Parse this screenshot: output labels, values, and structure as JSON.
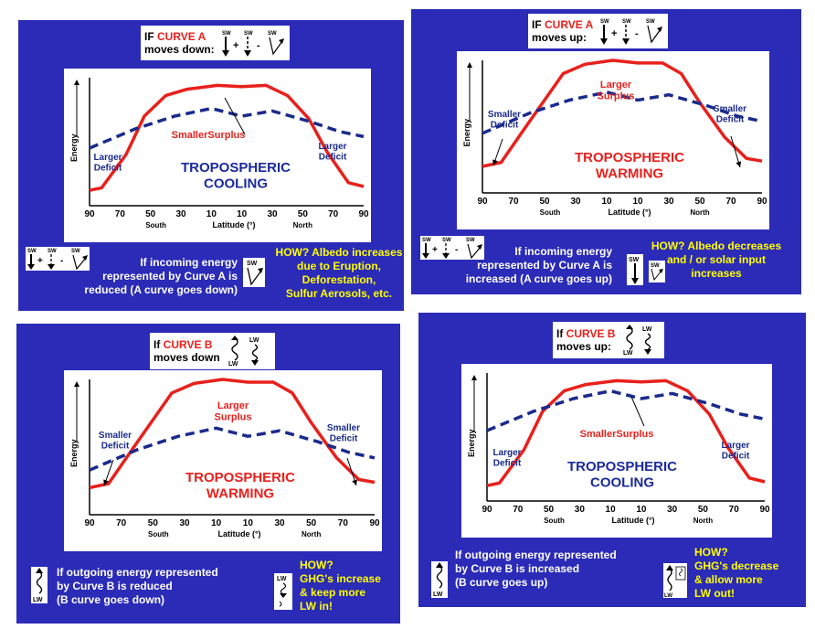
{
  "common": {
    "ylabel": "Energy",
    "xlabel": "Latitude (°)",
    "south": "South",
    "north": "North",
    "ticks": [
      "90",
      "70",
      "50",
      "30",
      "10",
      "10",
      "30",
      "50",
      "70",
      "90"
    ],
    "sw": "SW",
    "lw": "LW",
    "colors": {
      "panel": "#2b2bb8",
      "curveA": "#e8201c",
      "curveB": "#1a2a8c",
      "warm": "#e8201c",
      "cool": "#1a2a9c",
      "note": "#ffff00"
    }
  },
  "panels": [
    {
      "title_if": "IF ",
      "title_curve": "CURVE A",
      "title_rest": "moves down:",
      "op1": "+",
      "op2": "-",
      "surplus": "SmallerSurplus",
      "left_label": "Larger\nDeficit",
      "right_label": "Larger\nDeficit",
      "effect": "TROPOSPHERIC\nCOOLING",
      "desc": "If incoming energy\nrepresented by Curve A  is\nreduced (A curve goes down)",
      "how": "HOW?  Albedo increases\ndue to Eruption,\nDeforestation,\nSulfur Aerosols, etc."
    },
    {
      "title_if": "IF ",
      "title_curve": "CURVE A",
      "title_rest": "moves up:",
      "op1": "+",
      "op2": "-",
      "surplus": "Larger\nSurplus",
      "left_label": "Smaller\nDeficit",
      "right_label": "Smaller\nDeficit",
      "effect": "TROPOSPHERIC\nWARMING",
      "desc": "If incoming energy\nrepresented by Curve A  is\nincreased (A curve goes up)",
      "how": "HOW?  Albedo decreases\nand / or  solar input\nincreases"
    },
    {
      "title_if": "If ",
      "title_curve": "CURVE B",
      "title_rest": "moves down",
      "surplus": "Larger\nSurplus",
      "left_label": "Smaller\nDeficit",
      "right_label": "Smaller\nDeficit",
      "effect": "TROPOSPHERIC\nWARMING",
      "desc": "If outgoing energy  represented\nby Curve B  is reduced\n(B curve goes down)",
      "how": "HOW?\nGHG's increase\n& keep more\nLW  in!"
    },
    {
      "title_if": "If ",
      "title_curve": "CURVE B",
      "title_rest": "moves up:",
      "surplus": "SmallerSurplus",
      "left_label": "Larger\nDeficit",
      "right_label": "Larger\nDeficit",
      "effect": "TROPOSPHERIC\nCOOLING",
      "desc": "If outgoing energy  represented\nby Curve B  is increased\n(B curve goes up)",
      "how": "HOW?\nGHG's decrease\n&  allow more\nLW  out!"
    }
  ]
}
